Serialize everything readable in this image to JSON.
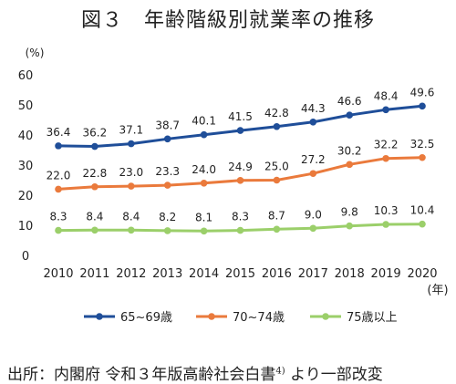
{
  "title": "図３　年齢階級別就業率の推移",
  "source": {
    "text": "出所：内閣府 令和３年版高齢社会白書",
    "sup": "4)",
    "suffix": " より一部改変"
  },
  "chart_data": {
    "type": "line",
    "y_unit": "(%)",
    "x_unit": "(年)",
    "ylim": [
      0,
      60
    ],
    "yticks": [
      0,
      10,
      20,
      30,
      40,
      50,
      60
    ],
    "grid": false,
    "legend_position": "bottom",
    "x": [
      "2010",
      "2011",
      "2012",
      "2013",
      "2014",
      "2015",
      "2016",
      "2017",
      "2018",
      "2019",
      "2020"
    ],
    "series": [
      {
        "name": "65~69歳",
        "color": "#1f4e99",
        "values": [
          36.4,
          36.2,
          37.1,
          38.7,
          40.1,
          41.5,
          42.8,
          44.3,
          46.6,
          48.4,
          49.6
        ]
      },
      {
        "name": "70~74歳",
        "color": "#ea7a3c",
        "values": [
          22.0,
          22.8,
          23.0,
          23.3,
          24.0,
          24.9,
          25.0,
          27.2,
          30.2,
          32.2,
          32.5
        ]
      },
      {
        "name": "75歳以上",
        "color": "#9bcf6a",
        "values": [
          8.3,
          8.4,
          8.4,
          8.2,
          8.1,
          8.3,
          8.7,
          9.0,
          9.8,
          10.3,
          10.4
        ]
      }
    ]
  }
}
